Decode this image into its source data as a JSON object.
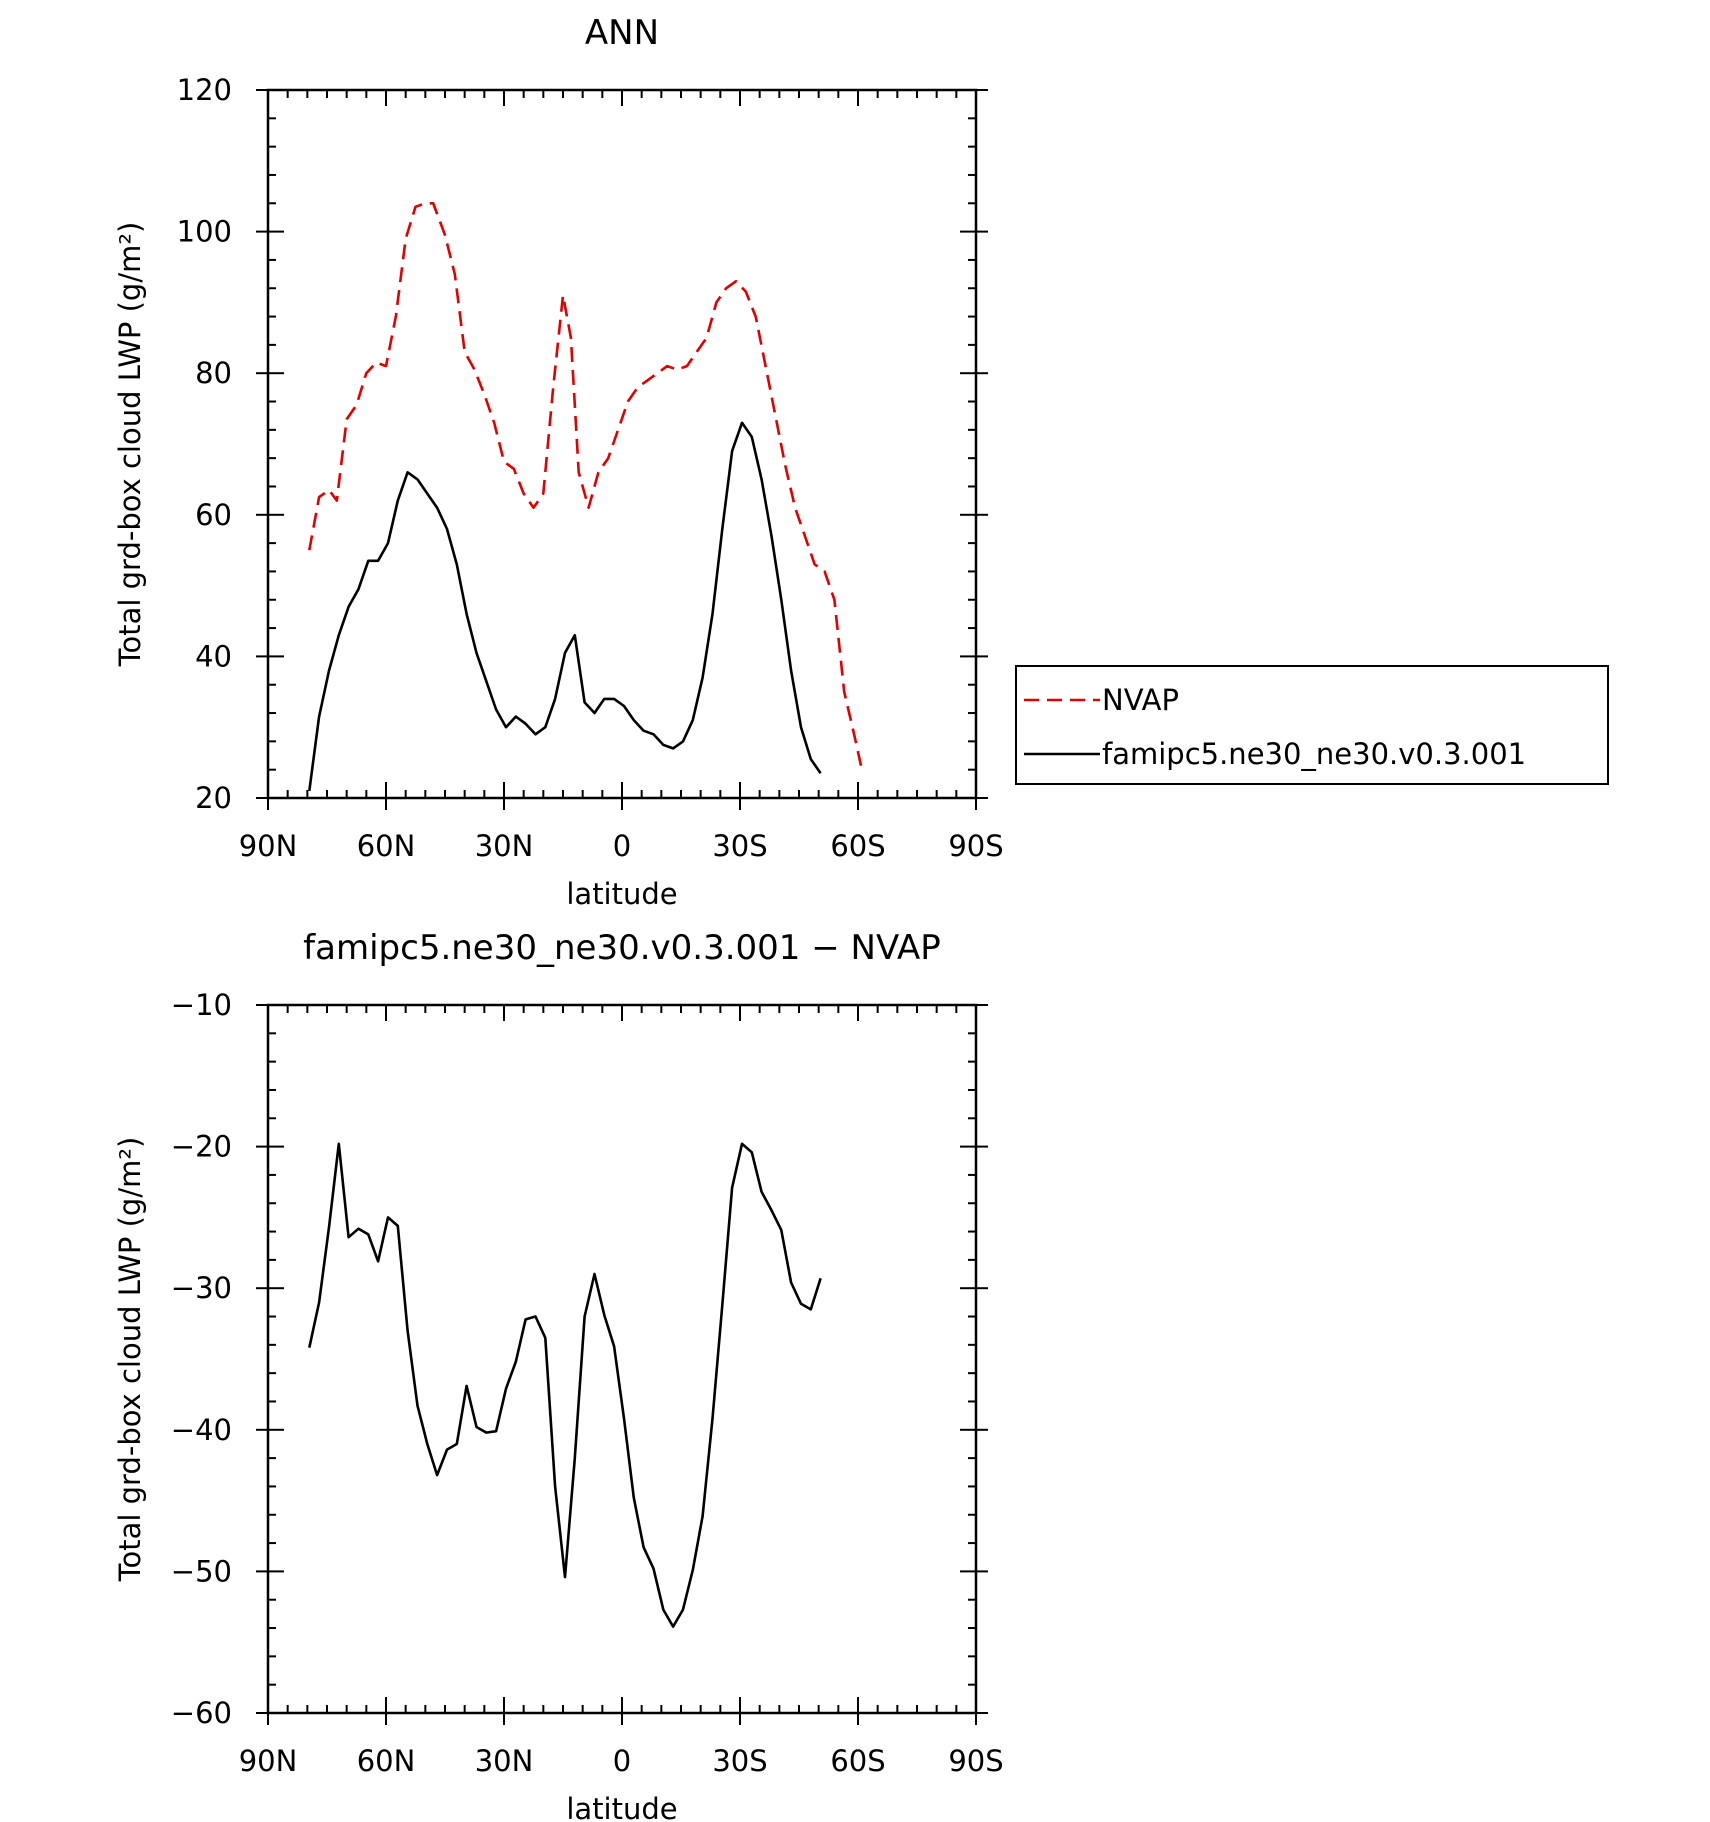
{
  "chart_data": [
    {
      "type": "line",
      "title": "ANN",
      "xlabel": "latitude",
      "ylabel": "Total grd-box cloud LWP (g/m²)",
      "xlim": [
        90,
        -90
      ],
      "ylim": [
        20,
        120
      ],
      "x_ticks": [
        90,
        60,
        30,
        0,
        -30,
        -60,
        -90
      ],
      "x_tick_labels": [
        "90N",
        "60N",
        "30N",
        "0",
        "30S",
        "60S",
        "90S"
      ],
      "y_ticks": [
        20,
        40,
        60,
        80,
        100,
        120
      ],
      "y_tick_labels": [
        "20",
        "40",
        "60",
        "80",
        "100",
        "120"
      ],
      "grid": false,
      "legend_position": "right-outside",
      "series": [
        {
          "name": "NVAP",
          "color": "#e00000",
          "style": "dashed",
          "points": [
            [
              79.5,
              55
            ],
            [
              77,
              62.5
            ],
            [
              74.5,
              63.5
            ],
            [
              72.5,
              62
            ],
            [
              70,
              73.5
            ],
            [
              67.5,
              75.5
            ],
            [
              65,
              80
            ],
            [
              62.5,
              81.5
            ],
            [
              60,
              81
            ],
            [
              57.5,
              88
            ],
            [
              55,
              99
            ],
            [
              52.5,
              103.5
            ],
            [
              50,
              104
            ],
            [
              48,
              104
            ],
            [
              45,
              99.5
            ],
            [
              42.5,
              94
            ],
            [
              40,
              83
            ],
            [
              37.5,
              80.5
            ],
            [
              35,
              77
            ],
            [
              32.5,
              73
            ],
            [
              30,
              67.5
            ],
            [
              27.5,
              66.5
            ],
            [
              25,
              63
            ],
            [
              22.5,
              61
            ],
            [
              20,
              63
            ],
            [
              17.5,
              78
            ],
            [
              15,
              91
            ],
            [
              13,
              85
            ],
            [
              11,
              66
            ],
            [
              8.5,
              61
            ],
            [
              6,
              66
            ],
            [
              3.5,
              68
            ],
            [
              1,
              72
            ],
            [
              -1.5,
              76
            ],
            [
              -4,
              78
            ],
            [
              -6.5,
              79
            ],
            [
              -9,
              80
            ],
            [
              -11.5,
              81
            ],
            [
              -14,
              80.5
            ],
            [
              -16.5,
              81
            ],
            [
              -19,
              83
            ],
            [
              -21.5,
              85
            ],
            [
              -24,
              90
            ],
            [
              -26.5,
              92
            ],
            [
              -29,
              93
            ],
            [
              -31.5,
              91.5
            ],
            [
              -34,
              88
            ],
            [
              -36.5,
              81
            ],
            [
              -39,
              74
            ],
            [
              -41.5,
              67
            ],
            [
              -44,
              61
            ],
            [
              -46.5,
              57
            ],
            [
              -49,
              53
            ],
            [
              -51.5,
              52
            ],
            [
              -54,
              48
            ],
            [
              -56.5,
              35
            ],
            [
              -59,
              29
            ],
            [
              -61,
              24
            ]
          ]
        },
        {
          "name": "famipc5.ne30_ne30.v0.3.001",
          "color": "#000000",
          "style": "solid",
          "points": [
            [
              79.5,
              21
            ],
            [
              77,
              31.5
            ],
            [
              74.5,
              38
            ],
            [
              72,
              43
            ],
            [
              69.5,
              47
            ],
            [
              67,
              49.5
            ],
            [
              64.5,
              53.5
            ],
            [
              62,
              53.5
            ],
            [
              59.5,
              56
            ],
            [
              57,
              62
            ],
            [
              54.5,
              66
            ],
            [
              52,
              65
            ],
            [
              49.5,
              63
            ],
            [
              47,
              61
            ],
            [
              44.5,
              58
            ],
            [
              42,
              53
            ],
            [
              39.5,
              46
            ],
            [
              37,
              40.5
            ],
            [
              34.5,
              36.5
            ],
            [
              32,
              32.5
            ],
            [
              29.5,
              30
            ],
            [
              27,
              31.5
            ],
            [
              24.5,
              30.5
            ],
            [
              22,
              29
            ],
            [
              19.5,
              30
            ],
            [
              17,
              34
            ],
            [
              14.5,
              40.5
            ],
            [
              12,
              43
            ],
            [
              9.5,
              33.5
            ],
            [
              7,
              32
            ],
            [
              4.5,
              34
            ],
            [
              2,
              34
            ],
            [
              -0.5,
              33
            ],
            [
              -3,
              31
            ],
            [
              -5.5,
              29.5
            ],
            [
              -8,
              29
            ],
            [
              -10.5,
              27.5
            ],
            [
              -13,
              27
            ],
            [
              -15.5,
              28
            ],
            [
              -18,
              31
            ],
            [
              -20.5,
              37
            ],
            [
              -23,
              46
            ],
            [
              -25.5,
              58
            ],
            [
              -28,
              69
            ],
            [
              -30.5,
              73
            ],
            [
              -33,
              71
            ],
            [
              -35.5,
              65
            ],
            [
              -38,
              57
            ],
            [
              -40.5,
              48
            ],
            [
              -43,
              38
            ],
            [
              -45.5,
              30
            ],
            [
              -48,
              25.5
            ],
            [
              -50.5,
              23.5
            ]
          ]
        }
      ]
    },
    {
      "type": "line",
      "title": "famipc5.ne30_ne30.v0.3.001 − NVAP",
      "xlabel": "latitude",
      "ylabel": "Total grd-box cloud LWP (g/m²)",
      "xlim": [
        90,
        -90
      ],
      "ylim": [
        -60,
        -10
      ],
      "x_ticks": [
        90,
        60,
        30,
        0,
        -30,
        -60,
        -90
      ],
      "x_tick_labels": [
        "90N",
        "60N",
        "30N",
        "0",
        "30S",
        "60S",
        "90S"
      ],
      "y_ticks": [
        -60,
        -50,
        -40,
        -30,
        -20,
        -10
      ],
      "y_tick_labels": [
        "−60",
        "−50",
        "−40",
        "−30",
        "−20",
        "−10"
      ],
      "grid": false,
      "series": [
        {
          "color": "#000000",
          "style": "solid",
          "points": [
            [
              79.5,
              -34.2
            ],
            [
              77,
              -31
            ],
            [
              74.5,
              -25.7
            ],
            [
              72,
              -19.8
            ],
            [
              69.5,
              -26.4
            ],
            [
              67,
              -25.8
            ],
            [
              64.5,
              -26.2
            ],
            [
              62,
              -28.1
            ],
            [
              59.5,
              -25
            ],
            [
              57,
              -25.6
            ],
            [
              54.5,
              -33
            ],
            [
              52,
              -38.3
            ],
            [
              49.5,
              -41
            ],
            [
              47,
              -43.2
            ],
            [
              44.5,
              -41.4
            ],
            [
              42,
              -41
            ],
            [
              39.5,
              -36.9
            ],
            [
              37,
              -39.8
            ],
            [
              34.5,
              -40.2
            ],
            [
              32,
              -40.1
            ],
            [
              29.5,
              -37.1
            ],
            [
              27,
              -35.2
            ],
            [
              24.5,
              -32.2
            ],
            [
              22,
              -32
            ],
            [
              19.5,
              -33.5
            ],
            [
              17,
              -44
            ],
            [
              14.5,
              -50.4
            ],
            [
              12,
              -42
            ],
            [
              9.5,
              -32
            ],
            [
              7,
              -29
            ],
            [
              4.5,
              -31.9
            ],
            [
              2,
              -34.1
            ],
            [
              -0.5,
              -39.2
            ],
            [
              -3,
              -44.8
            ],
            [
              -5.5,
              -48.3
            ],
            [
              -8,
              -49.8
            ],
            [
              -10.5,
              -52.7
            ],
            [
              -13,
              -53.9
            ],
            [
              -15.5,
              -52.7
            ],
            [
              -18,
              -49.9
            ],
            [
              -20.5,
              -46.1
            ],
            [
              -23,
              -39.2
            ],
            [
              -25.5,
              -31.2
            ],
            [
              -28,
              -22.9
            ],
            [
              -30.5,
              -19.8
            ],
            [
              -33,
              -20.4
            ],
            [
              -35.5,
              -23.2
            ],
            [
              -38,
              -24.5
            ],
            [
              -40.5,
              -25.9
            ],
            [
              -43,
              -29.6
            ],
            [
              -45.5,
              -31.1
            ],
            [
              -48,
              -31.5
            ],
            [
              -50.5,
              -29.3
            ]
          ]
        }
      ]
    }
  ]
}
